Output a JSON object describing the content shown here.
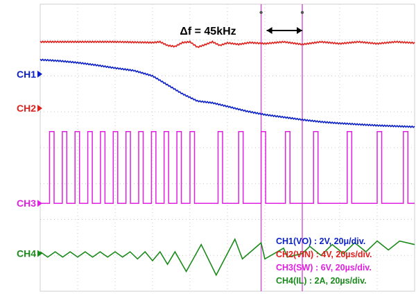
{
  "chart_data": {
    "type": "line",
    "title": "",
    "xlabel": "",
    "ylabel": "",
    "grid": true,
    "annotation": {
      "text": "Δf = 45kHz",
      "arrow": "double-headed",
      "between_cursors": [
        5.9,
        7.0
      ]
    },
    "cursor_positions_div": [
      5.9,
      7.0
    ],
    "x_divisions": 10,
    "y_divisions": 8,
    "channel_markers": [
      {
        "label": "CH1",
        "color": "#0a1fc8"
      },
      {
        "label": "CH2",
        "color": "#e0201c"
      },
      {
        "label": "CH3",
        "color": "#e020e0"
      },
      {
        "label": "CH4",
        "color": "#1a8a1a"
      }
    ],
    "legend": [
      {
        "text": "CH1(VO) : 2V, 20μ/div.",
        "color": "#0a1fc8"
      },
      {
        "text": "CH2(VIN) : 4V, 20µs/div.",
        "color": "#e0201c"
      },
      {
        "text": "CH3(SW) : 6V, 20µs/div.",
        "color": "#e020e0"
      },
      {
        "text": "CH4(IL) : 2A, 20µs/div.",
        "color": "#1a8a1a"
      }
    ],
    "series": [
      {
        "channel": "CH2",
        "color": "#e0201c",
        "x": [
          0,
          1,
          2,
          3,
          3.2,
          3.4,
          3.6,
          3.8,
          4,
          4.2,
          4.4,
          4.6,
          4.8,
          5,
          5.3,
          5.6,
          6,
          6.5,
          7,
          7.5,
          8,
          8.5,
          9,
          9.5,
          10
        ],
        "y": [
          6.95,
          6.95,
          6.95,
          6.93,
          6.95,
          6.85,
          6.82,
          6.93,
          6.95,
          6.8,
          6.87,
          6.95,
          6.85,
          6.92,
          6.88,
          6.93,
          6.9,
          6.95,
          6.88,
          6.95,
          6.9,
          6.95,
          6.9,
          6.95,
          6.92
        ]
      },
      {
        "channel": "CH1",
        "color": "#0a1fc8",
        "x": [
          0,
          0.5,
          1,
          1.5,
          2,
          2.5,
          3,
          3.4,
          3.8,
          4.2,
          4.6,
          5,
          5.5,
          6,
          6.5,
          7,
          7.5,
          8,
          8.5,
          9,
          9.5,
          10
        ],
        "y": [
          6.45,
          6.42,
          6.37,
          6.3,
          6.22,
          6.15,
          6.0,
          5.75,
          5.5,
          5.3,
          5.25,
          5.15,
          5.02,
          4.92,
          4.85,
          4.78,
          4.72,
          4.68,
          4.65,
          4.62,
          4.6,
          4.58
        ]
      }
    ],
    "ch3_switching": {
      "color": "#e020e0",
      "low": 2.45,
      "high": 4.45,
      "pulse_starts": [
        0.25,
        0.59,
        0.93,
        1.27,
        1.61,
        1.95,
        2.29,
        2.63,
        2.97,
        3.31,
        3.65,
        4.0,
        4.75,
        5.3,
        5.9,
        6.55,
        7.3,
        8.2,
        9.0,
        9.7
      ],
      "pulse_width": 0.12
    },
    "ch4_sawtooth": {
      "color": "#1a8a1a",
      "x": [
        0,
        0.2,
        0.4,
        0.6,
        0.8,
        1.0,
        1.2,
        1.4,
        1.6,
        1.8,
        2.0,
        2.2,
        2.4,
        2.6,
        2.8,
        3.0,
        3.2,
        3.4,
        3.6,
        3.9,
        4.3,
        4.7,
        5.2,
        5.4,
        5.9,
        6.0,
        6.5,
        6.6,
        7.0,
        7.2,
        7.5,
        7.8,
        8.1,
        8.4,
        8.7,
        9.0,
        9.3,
        9.6,
        10
      ],
      "y": [
        1.1,
        0.95,
        1.1,
        0.95,
        1.1,
        0.95,
        1.1,
        0.95,
        1.1,
        0.95,
        1.1,
        0.95,
        1.1,
        0.9,
        1.1,
        0.85,
        1.1,
        0.75,
        1.1,
        0.55,
        1.3,
        0.45,
        1.45,
        0.9,
        1.35,
        0.9,
        1.2,
        0.95,
        1.05,
        1.25,
        1.0,
        1.3,
        1.05,
        1.35,
        1.1,
        1.4,
        1.15,
        1.4,
        1.3
      ]
    }
  }
}
